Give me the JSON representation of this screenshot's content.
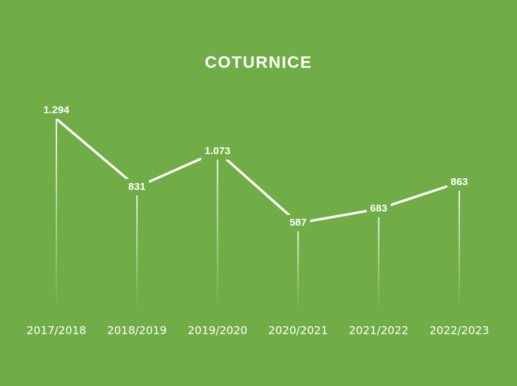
{
  "chart_data": {
    "type": "line",
    "title": "COTURNICE",
    "categories": [
      "2017/2018",
      "2018/2019",
      "2019/2020",
      "2020/2021",
      "2021/2022",
      "2022/2023"
    ],
    "values": [
      1294,
      831,
      1073,
      587,
      683,
      863
    ],
    "value_labels": [
      "1.294",
      "831",
      "1.073",
      "587",
      "683",
      "863"
    ],
    "color": "#ffffff",
    "background": "#70ad47",
    "ylim": [
      0,
      1400
    ],
    "drop_lines": true
  }
}
